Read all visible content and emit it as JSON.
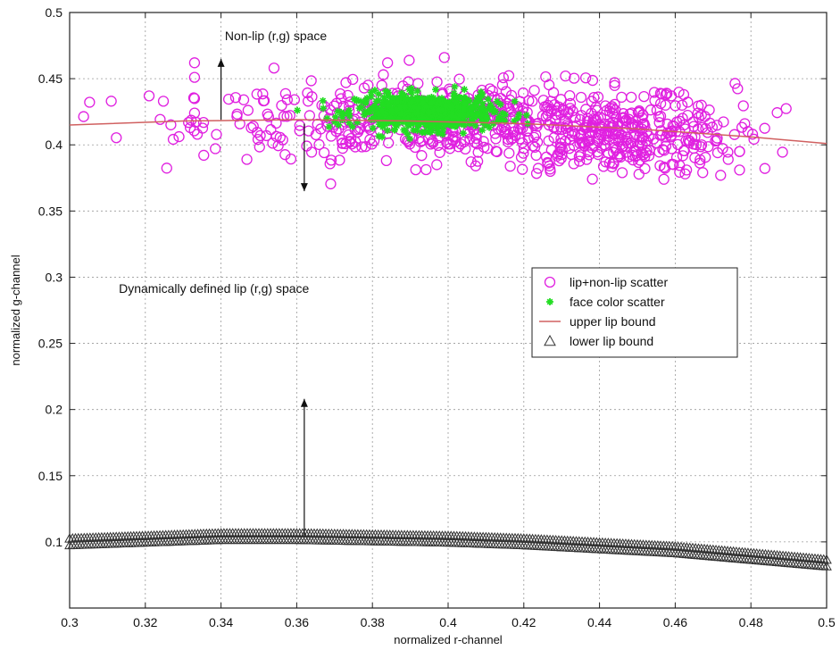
{
  "chart_data": {
    "type": "scatter",
    "title": "",
    "xlabel": "normalized r-channel",
    "ylabel": "normalized g-channel",
    "xlim": [
      0.3,
      0.5
    ],
    "ylim": [
      0.05,
      0.5
    ],
    "xticks": [
      0.3,
      0.32,
      0.34,
      0.36,
      0.38,
      0.4,
      0.42,
      0.44,
      0.46,
      0.48,
      0.5
    ],
    "yticks": [
      0.1,
      0.15,
      0.2,
      0.25,
      0.3,
      0.35,
      0.4,
      0.45,
      0.5
    ],
    "grid": true,
    "legend_position": "center-right",
    "series": [
      {
        "name": "lip+non-lip scatter",
        "marker": "circle",
        "color": "#e020e0",
        "clusters": [
          {
            "cx": 0.405,
            "cy": 0.418,
            "sx": 0.035,
            "sy": 0.014,
            "n": 620
          },
          {
            "cx": 0.445,
            "cy": 0.403,
            "sx": 0.015,
            "sy": 0.013,
            "n": 220
          }
        ],
        "points": [
          [
            0.311,
            0.433
          ],
          [
            0.321,
            0.437
          ],
          [
            0.333,
            0.462
          ],
          [
            0.333,
            0.451
          ],
          [
            0.333,
            0.435
          ],
          [
            0.333,
            0.424
          ],
          [
            0.354,
            0.458
          ],
          [
            0.363,
            0.433
          ],
          [
            0.373,
            0.447
          ],
          [
            0.384,
            0.462
          ],
          [
            0.399,
            0.466
          ],
          [
            0.431,
            0.452
          ],
          [
            0.444,
            0.447
          ],
          [
            0.459,
            0.437
          ],
          [
            0.466,
            0.424
          ],
          [
            0.459,
            0.41
          ],
          [
            0.467,
            0.4
          ],
          [
            0.474,
            0.389
          ],
          [
            0.477,
            0.395
          ],
          [
            0.477,
            0.381
          ],
          [
            0.472,
            0.377
          ],
          [
            0.463,
            0.381
          ],
          [
            0.457,
            0.374
          ],
          [
            0.452,
            0.382
          ],
          [
            0.446,
            0.379
          ],
          [
            0.427,
            0.38
          ],
          [
            0.397,
            0.385
          ]
        ]
      },
      {
        "name": "face color scatter",
        "marker": "star",
        "color": "#22dd22",
        "clusters": [
          {
            "cx": 0.394,
            "cy": 0.425,
            "sx": 0.009,
            "sy": 0.0065,
            "n": 650
          }
        ],
        "points": [
          [
            0.372,
            0.422
          ],
          [
            0.368,
            0.42
          ],
          [
            0.381,
            0.433
          ],
          [
            0.41,
            0.415
          ],
          [
            0.415,
            0.418
          ],
          [
            0.421,
            0.416
          ]
        ]
      },
      {
        "name": "upper lip bound",
        "marker": "line",
        "color": "#d06060",
        "x": [
          0.3,
          0.33,
          0.36,
          0.39,
          0.42,
          0.45,
          0.48,
          0.5
        ],
        "y": [
          0.415,
          0.418,
          0.419,
          0.418,
          0.416,
          0.412,
          0.406,
          0.401
        ]
      },
      {
        "name": "lower lip bound",
        "marker": "triangle",
        "color": "#333333",
        "x": [
          0.3,
          0.32,
          0.34,
          0.36,
          0.38,
          0.4,
          0.42,
          0.44,
          0.46,
          0.48,
          0.5
        ],
        "y": [
          0.1,
          0.102,
          0.104,
          0.104,
          0.103,
          0.102,
          0.1,
          0.097,
          0.094,
          0.089,
          0.084
        ]
      }
    ],
    "annotations": [
      {
        "text": "Non-lip (r,g) space",
        "x": 0.341,
        "y": 0.479
      },
      {
        "text": "Dynamically defined lip (r,g) space",
        "x": 0.313,
        "y": 0.288
      }
    ],
    "arrows": [
      {
        "from": [
          0.34,
          0.419
        ],
        "to": [
          0.34,
          0.465
        ]
      },
      {
        "from": [
          0.362,
          0.416
        ],
        "to": [
          0.362,
          0.365
        ]
      },
      {
        "from": [
          0.362,
          0.105
        ],
        "to": [
          0.362,
          0.208
        ]
      }
    ]
  }
}
